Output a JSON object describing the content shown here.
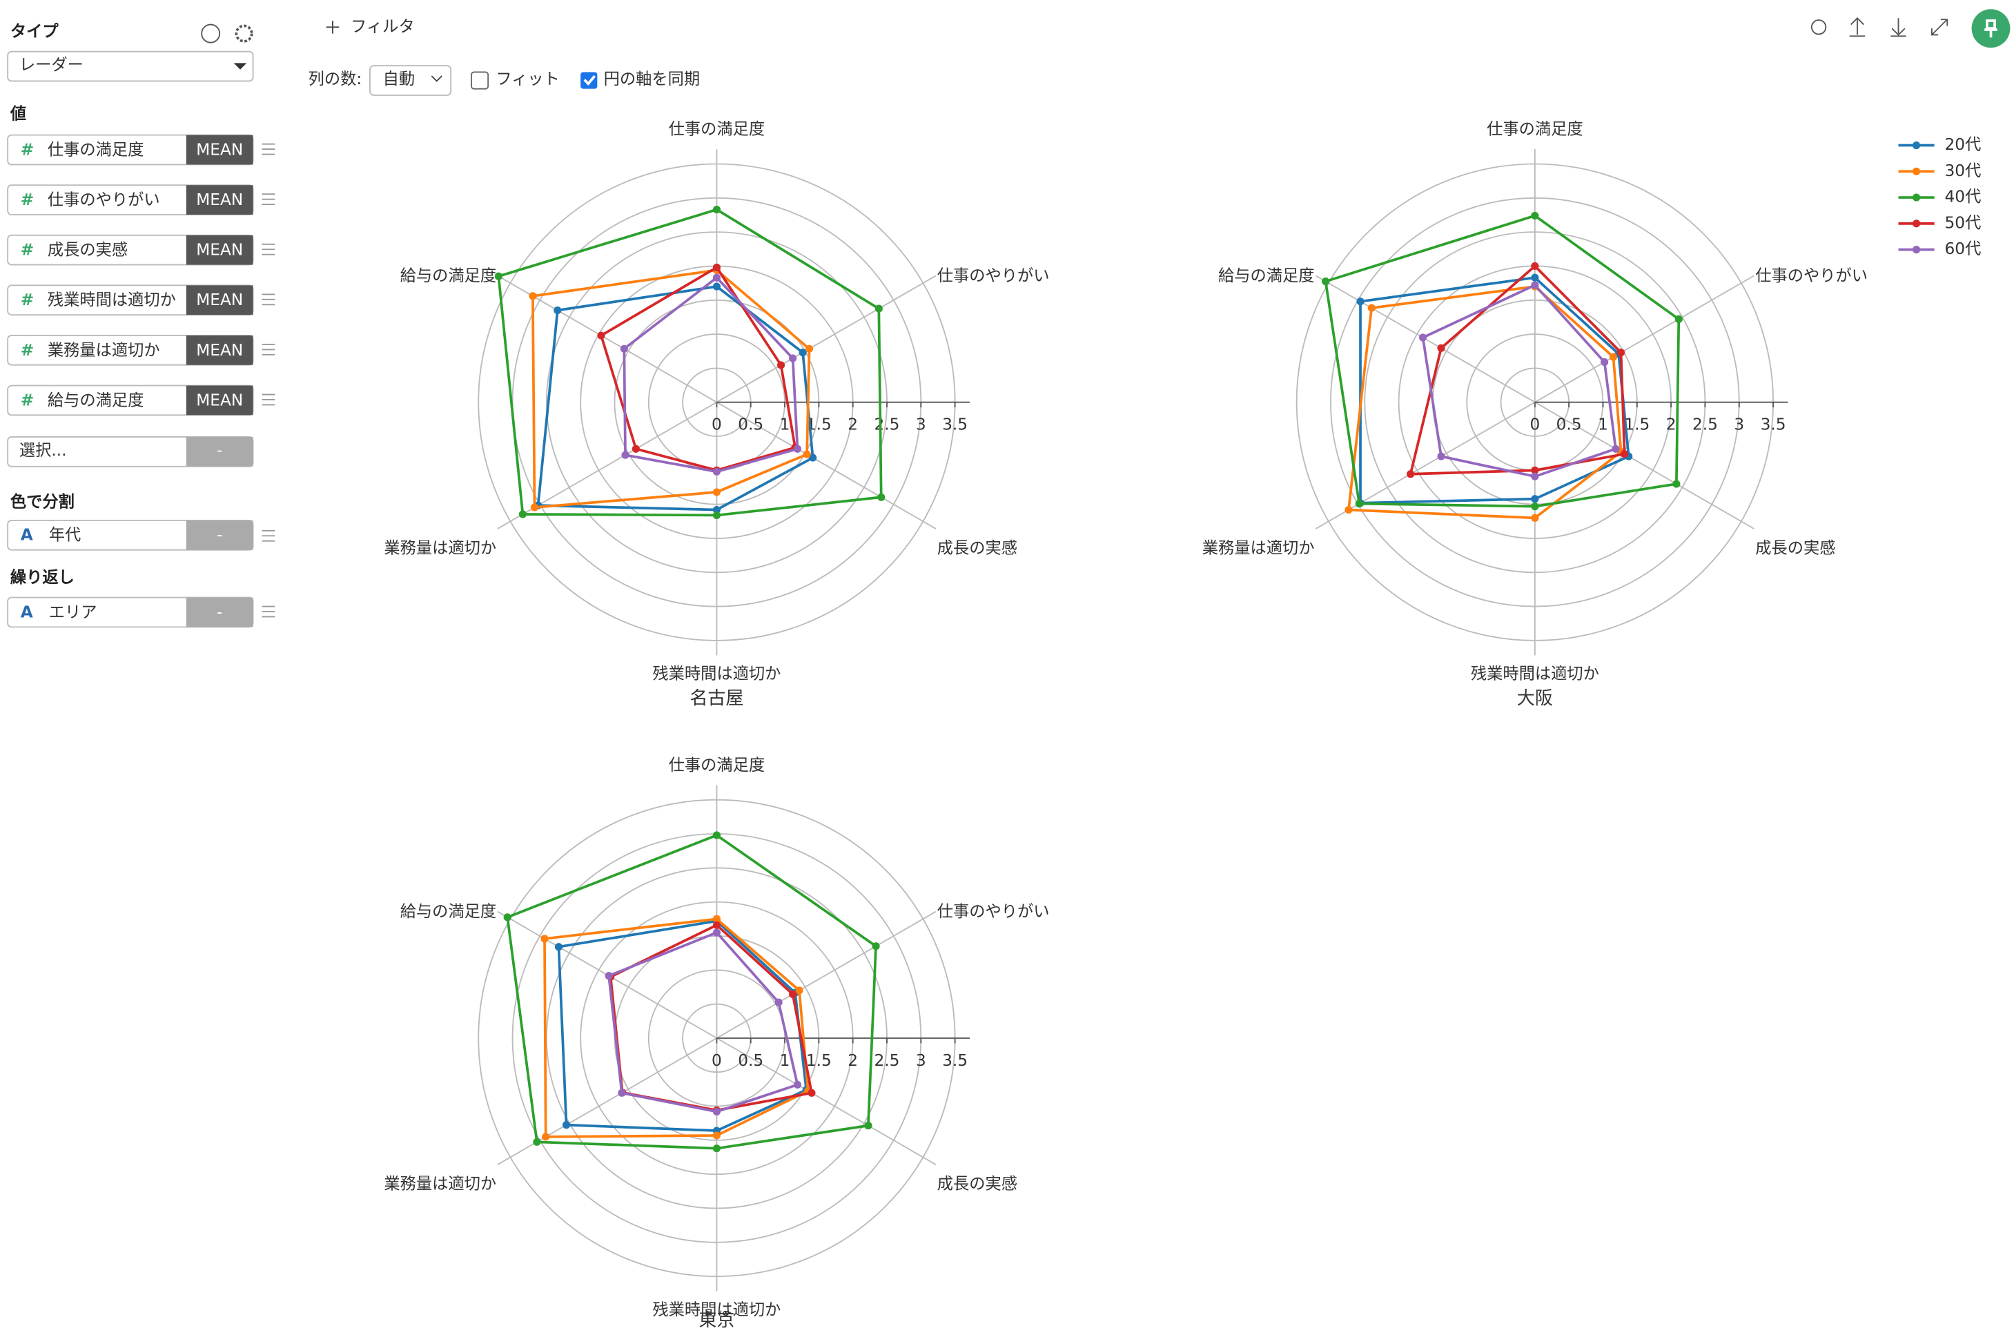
{
  "sidebar": {
    "type_label": "タイプ",
    "type_value": "レーダー",
    "values_label": "値",
    "value_fields": [
      {
        "name": "仕事の満足度",
        "agg": "MEAN"
      },
      {
        "name": "仕事のやりがい",
        "agg": "MEAN"
      },
      {
        "name": "成長の実感",
        "agg": "MEAN"
      },
      {
        "name": "残業時間は適切か",
        "agg": "MEAN"
      },
      {
        "name": "業務量は適切か",
        "agg": "MEAN"
      },
      {
        "name": "給与の満足度",
        "agg": "MEAN"
      }
    ],
    "select_placeholder": "選択...",
    "select_dash": "-",
    "color_label": "色で分割",
    "color_field": "年代",
    "color_dash": "-",
    "repeat_label": "繰り返し",
    "repeat_field": "エリア",
    "repeat_dash": "-"
  },
  "toolbar": {
    "filter": "フィルタ",
    "columns_label": "列の数:",
    "columns_value": "自動",
    "fit": "フィット",
    "sync": "円の軸を同期"
  },
  "chart_data": [
    {
      "type": "radar",
      "title": "名古屋",
      "categories": [
        "仕事の満足度",
        "仕事のやりがい",
        "成長の実感",
        "残業時間は適切か",
        "業務量は適切か",
        "給与の満足度"
      ],
      "rlim": [
        0,
        3.5
      ],
      "rticks": [
        0,
        0.5,
        1,
        1.5,
        2,
        2.5,
        3,
        3.5
      ],
      "legend": false,
      "series": [
        {
          "name": "20代",
          "color": "#1f77b4",
          "values": [
            1.7,
            1.46,
            1.63,
            1.58,
            3.03,
            2.7
          ]
        },
        {
          "name": "30代",
          "color": "#ff7f0e",
          "values": [
            1.94,
            1.57,
            1.53,
            1.32,
            3.09,
            3.12
          ]
        },
        {
          "name": "40代",
          "color": "#2ca02c",
          "values": [
            2.83,
            2.75,
            2.79,
            1.66,
            3.29,
            3.7
          ]
        },
        {
          "name": "50代",
          "color": "#d62728",
          "values": [
            1.98,
            1.09,
            1.33,
            1.0,
            1.37,
            1.96
          ]
        },
        {
          "name": "60代",
          "color": "#9467bd",
          "values": [
            1.83,
            1.29,
            1.37,
            1.02,
            1.55,
            1.57
          ]
        }
      ]
    },
    {
      "type": "radar",
      "title": "大阪",
      "categories": [
        "仕事の満足度",
        "仕事のやりがい",
        "成長の実感",
        "残業時間は適切か",
        "業務量は適切か",
        "給与の満足度"
      ],
      "rlim": [
        0,
        3.5
      ],
      "rticks": [
        0,
        0.5,
        1,
        1.5,
        2,
        2.5,
        3,
        3.5
      ],
      "legend": true,
      "series": [
        {
          "name": "20代",
          "color": "#1f77b4",
          "values": [
            1.83,
            1.42,
            1.59,
            1.42,
            2.96,
            2.96
          ]
        },
        {
          "name": "30代",
          "color": "#ff7f0e",
          "values": [
            1.7,
            1.33,
            1.46,
            1.7,
            3.16,
            2.77
          ]
        },
        {
          "name": "40代",
          "color": "#2ca02c",
          "values": [
            2.74,
            2.44,
            2.4,
            1.53,
            2.98,
            3.55
          ]
        },
        {
          "name": "50代",
          "color": "#d62728",
          "values": [
            2.0,
            1.46,
            1.52,
            1.0,
            2.11,
            1.59
          ]
        },
        {
          "name": "60代",
          "color": "#9467bd",
          "values": [
            1.72,
            1.18,
            1.37,
            1.09,
            1.59,
            1.9
          ]
        }
      ]
    },
    {
      "type": "radar",
      "title": "東京",
      "categories": [
        "仕事の満足度",
        "仕事のやりがい",
        "成長の実感",
        "残業時間は適切か",
        "業務量は適切か",
        "給与の満足度"
      ],
      "rlim": [
        0,
        3.5
      ],
      "rticks": [
        0,
        0.5,
        1,
        1.5,
        2,
        2.5,
        3,
        3.5
      ],
      "legend": false,
      "series": [
        {
          "name": "20代",
          "color": "#1f77b4",
          "values": [
            1.72,
            1.33,
            1.52,
            1.36,
            2.55,
            2.68
          ]
        },
        {
          "name": "30代",
          "color": "#ff7f0e",
          "values": [
            1.75,
            1.4,
            1.55,
            1.43,
            2.9,
            2.92
          ]
        },
        {
          "name": "40代",
          "color": "#2ca02c",
          "values": [
            2.98,
            2.7,
            2.57,
            1.62,
            3.05,
            3.55
          ]
        },
        {
          "name": "50代",
          "color": "#d62728",
          "values": [
            1.66,
            1.29,
            1.61,
            1.06,
            1.6,
            1.8
          ]
        },
        {
          "name": "60代",
          "color": "#9467bd",
          "values": [
            1.55,
            1.05,
            1.37,
            1.08,
            1.61,
            1.83
          ]
        }
      ]
    }
  ]
}
